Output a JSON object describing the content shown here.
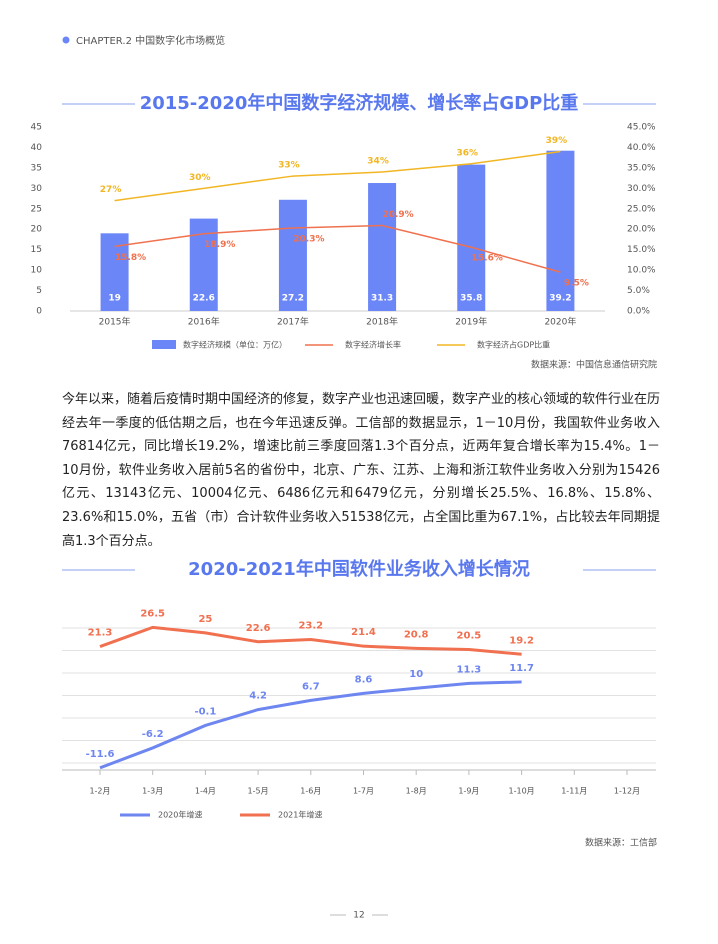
{
  "header": "CHAPTER.2 中国数字化市场概览",
  "chart_data": [
    {
      "type": "bar",
      "title": "2015-2020年中国数字经济规模、增长率占GDP比重",
      "categories": [
        "2015年",
        "2016年",
        "2017年",
        "2018年",
        "2019年",
        "2020年"
      ],
      "series": [
        {
          "name": "数字经济规模（单位：万亿）",
          "type": "bar",
          "color": "#6b86f7",
          "values": [
            19,
            22.6,
            27.2,
            31.3,
            35.8,
            39.2
          ]
        },
        {
          "name": "数字经济增长率",
          "type": "line",
          "axis": "y2",
          "color": "#f0714e",
          "values": [
            15.8,
            18.9,
            20.3,
            20.9,
            15.6,
            9.5
          ],
          "value_labels": [
            "15.8%",
            "18.9%",
            "20.3%",
            "20.9%",
            "15.6%",
            "9.5%"
          ]
        },
        {
          "name": "数字经济占GDP比重",
          "type": "line",
          "axis": "y2",
          "color": "#f2b624",
          "values": [
            27,
            30,
            33,
            34,
            36,
            39
          ],
          "value_labels": [
            "27%",
            "30%",
            "33%",
            "34%",
            "36%",
            "39%"
          ]
        }
      ],
      "ylim": [
        0,
        45
      ],
      "yticks": [
        0,
        5,
        10,
        15,
        20,
        25,
        30,
        35,
        40,
        45
      ],
      "y2lim": [
        0,
        45
      ],
      "y2ticks": [
        {
          "value": 0,
          "label": "0.0%"
        },
        {
          "value": 5,
          "label": "5.0%"
        },
        {
          "value": 10,
          "label": "10.0%"
        },
        {
          "value": 15,
          "label": "15.0%"
        },
        {
          "value": 20,
          "label": "20.0%"
        },
        {
          "value": 25,
          "label": "25.0%"
        },
        {
          "value": 30,
          "label": "30.0%"
        },
        {
          "value": 35,
          "label": "35.0%"
        },
        {
          "value": 40,
          "label": "40.0%"
        },
        {
          "value": 45,
          "label": "45.0%"
        }
      ],
      "source": "数据来源：中国信息通信研究院"
    },
    {
      "type": "line",
      "title": "2020-2021年中国软件业务收入增长情况",
      "categories": [
        "1-2月",
        "1-3月",
        "1-4月",
        "1-5月",
        "1-6月",
        "1-7月",
        "1-8月",
        "1-9月",
        "1-10月",
        "1-11月",
        "1-12月"
      ],
      "series": [
        {
          "name": "2020年增速",
          "color": "#6e86ef",
          "values": [
            -11.6,
            -6.2,
            -0.1,
            4.2,
            6.7,
            8.6,
            10,
            11.3,
            11.7,
            null,
            null
          ]
        },
        {
          "name": "2021年增速",
          "color": "#f07050",
          "values": [
            21.3,
            26.5,
            25,
            22.6,
            23.2,
            21.4,
            20.8,
            20.5,
            19.2,
            null,
            null
          ]
        }
      ],
      "ylim": [
        -13,
        28.5
      ],
      "grid": true,
      "source": "数据来源：工信部"
    }
  ],
  "paragraph": "今年以来，随着后疫情时期中国经济的修复，数字产业也迅速回暖，数字产业的核心领域的软件行业在历经去年一季度的低估期之后，也在今年迅速反弹。工信部的数据显示，1－10月份，我国软件业务收入76814亿元，同比增长19.2%，增速比前三季度回落1.3个百分点，近两年复合增长率为15.4%。1－10月份，软件业务收入居前5名的省份中，北京、广东、江苏、上海和浙江软件业务收入分别为15426亿元、13143亿元、10004亿元、6486亿元和6479亿元，分别增长25.5%、16.8%、15.8%、23.6%和15.0%，五省（市）合计软件业务收入51538亿元，占全国比重为67.1%，占比较去年同期提高1.3个百分点。",
  "page_number": "12"
}
